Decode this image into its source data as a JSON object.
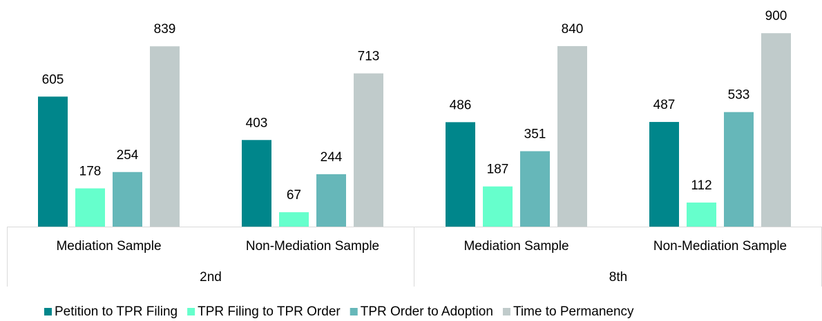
{
  "chart_data": {
    "type": "bar",
    "groups": [
      {
        "name": "2nd",
        "categories": [
          "Mediation Sample",
          "Non-Mediation Sample"
        ]
      },
      {
        "name": "8th",
        "categories": [
          "Mediation Sample",
          "Non-Mediation Sample"
        ]
      }
    ],
    "series": [
      {
        "name": "Petition to TPR Filing",
        "color": "#00868b",
        "values": [
          605,
          403,
          486,
          487
        ]
      },
      {
        "name": "TPR Filing to TPR Order",
        "color": "#66ffcc",
        "values": [
          178,
          67,
          187,
          112
        ]
      },
      {
        "name": "TPR Order to Adoption",
        "color": "#66b7b9",
        "values": [
          254,
          244,
          351,
          533
        ]
      },
      {
        "name": "Time to Permanency",
        "color": "#c0cbcb",
        "values": [
          839,
          713,
          840,
          900
        ]
      }
    ],
    "ylim": [
      0,
      1000
    ],
    "legend": "bottom"
  }
}
